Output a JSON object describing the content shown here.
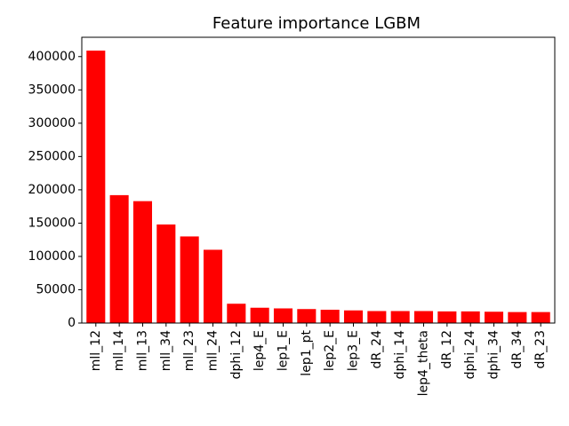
{
  "chart_data": {
    "type": "bar",
    "title": "Feature importance LGBM",
    "xlabel": "",
    "ylabel": "",
    "categories": [
      "mll_12",
      "mll_14",
      "mll_13",
      "mll_34",
      "mll_23",
      "mll_24",
      "dphi_12",
      "lep4_E",
      "lep1_E",
      "lep1_pt",
      "lep2_E",
      "lep3_E",
      "dR_24",
      "dphi_14",
      "lep4_theta",
      "dR_12",
      "dphi_24",
      "dphi_34",
      "dR_34",
      "dR_23"
    ],
    "values": [
      409000,
      192000,
      183000,
      148000,
      130000,
      110000,
      29000,
      23000,
      22000,
      21000,
      20000,
      19000,
      18000,
      18000,
      18000,
      17500,
      17500,
      17000,
      16500,
      16500
    ],
    "ylim": [
      0,
      429000
    ],
    "yticks": [
      0,
      50000,
      100000,
      150000,
      200000,
      250000,
      300000,
      350000,
      400000
    ],
    "ytick_labels": [
      "0",
      "50000",
      "100000",
      "150000",
      "200000",
      "250000",
      "300000",
      "350000",
      "400000"
    ],
    "bar_color": "#ff0000",
    "grid": false,
    "legend": false
  }
}
